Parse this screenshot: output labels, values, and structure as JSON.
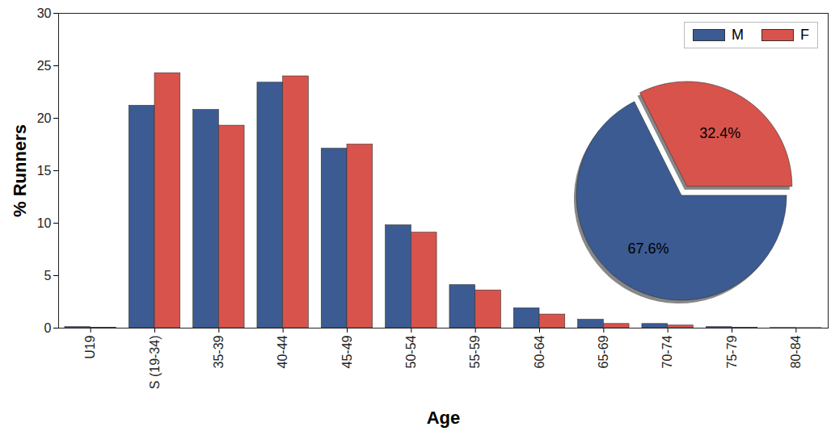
{
  "chart_data": [
    {
      "type": "bar",
      "x_label": "Age",
      "y_label": "% Runners",
      "categories": [
        "U19",
        "S (19-34)",
        "35-39",
        "40-44",
        "45-49",
        "50-54",
        "55-59",
        "60-64",
        "65-69",
        "70-74",
        "75-79",
        "80-84"
      ],
      "series": [
        {
          "name": "M",
          "color": "#3b5b92",
          "values": [
            0.1,
            21.2,
            20.8,
            23.4,
            17.1,
            9.8,
            4.1,
            1.9,
            0.8,
            0.4,
            0.1,
            0.02
          ]
        },
        {
          "name": "F",
          "color": "#d8534b",
          "values": [
            0.05,
            24.3,
            19.3,
            24.0,
            17.5,
            9.1,
            3.6,
            1.3,
            0.4,
            0.25,
            0.03,
            0.01
          ]
        }
      ],
      "ylim": [
        0,
        30
      ],
      "yticks": [
        0,
        5,
        10,
        15,
        20,
        25,
        30
      ],
      "legend": "upper right"
    },
    {
      "type": "pie",
      "categories": [
        "M",
        "F"
      ],
      "values": [
        67.6,
        32.4
      ],
      "colors": [
        "#3b5b92",
        "#d8534b"
      ],
      "data_labels": true,
      "value_labels": [
        "67.6%",
        "32.4%"
      ]
    }
  ]
}
